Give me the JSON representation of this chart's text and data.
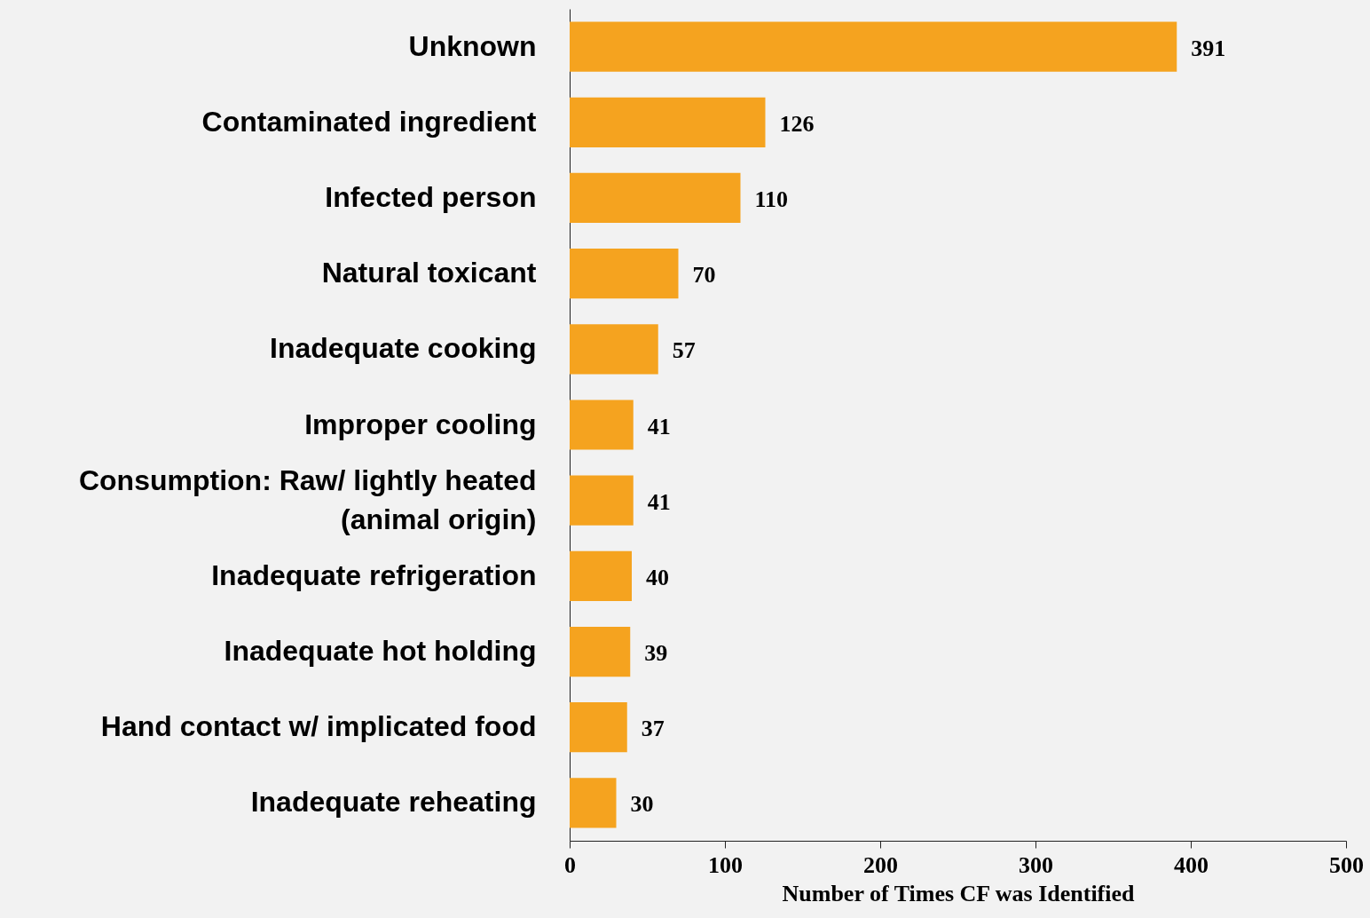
{
  "chart_data": {
    "type": "bar",
    "orientation": "horizontal",
    "categories": [
      "Unknown",
      "Contaminated ingredient",
      "Infected person",
      "Natural toxicant",
      "Inadequate cooking",
      "Improper cooling",
      "Consumption: Raw/ lightly heated (animal origin)",
      "Inadequate refrigeration",
      "Inadequate hot holding",
      "Hand contact w/ implicated food",
      "Inadequate reheating"
    ],
    "values": [
      391,
      126,
      110,
      70,
      57,
      41,
      41,
      40,
      39,
      37,
      30
    ],
    "color": "#f5a31f",
    "xlabel": "Number of Times CF was Identified",
    "xlim": [
      0,
      500
    ],
    "xticks": [
      0,
      100,
      200,
      300,
      400,
      500
    ],
    "data_labels": true,
    "grid": false
  }
}
